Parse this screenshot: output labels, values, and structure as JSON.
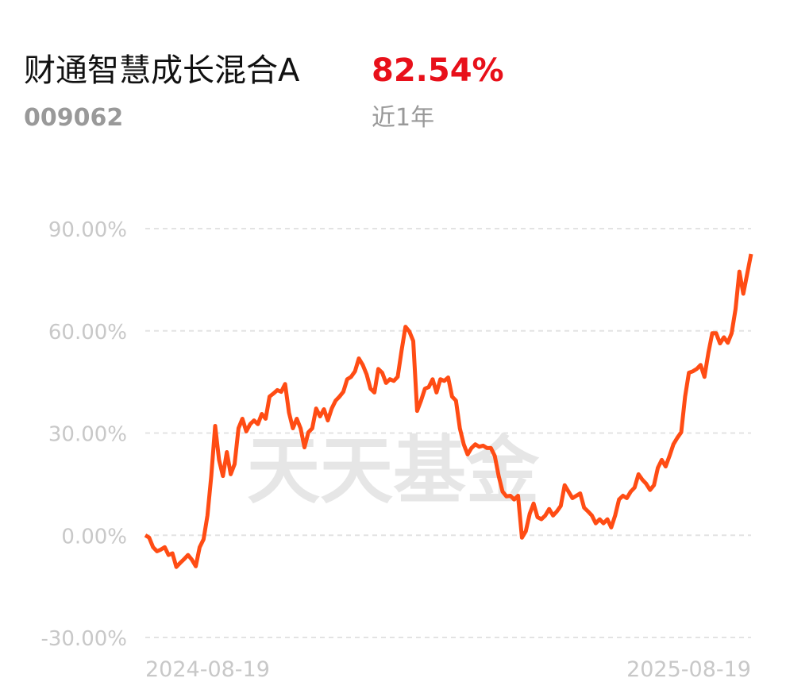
{
  "header": {
    "title": "财通智慧成长混合A",
    "return": "82.54%",
    "code": "009062",
    "period": "近1年"
  },
  "chart_data": {
    "type": "line",
    "watermark": "天天基金",
    "categories": [
      "2024-08-19",
      null,
      null,
      null,
      null,
      null,
      null,
      null,
      null,
      null,
      null,
      null,
      null,
      null,
      null,
      null,
      null,
      null,
      null,
      null,
      null,
      null,
      null,
      null,
      null,
      null,
      null,
      null,
      null,
      null,
      null,
      null,
      null,
      null,
      null,
      null,
      null,
      null,
      null,
      null,
      null,
      null,
      null,
      null,
      null,
      null,
      null,
      null,
      null,
      null,
      null,
      null,
      null,
      null,
      null,
      null,
      null,
      null,
      null,
      null,
      null,
      null,
      null,
      null,
      null,
      null,
      null,
      null,
      null,
      null,
      null,
      null,
      null,
      null,
      null,
      null,
      null,
      null,
      null,
      null,
      null,
      null,
      null,
      null,
      null,
      null,
      null,
      null,
      null,
      null,
      null,
      null,
      null,
      null,
      null,
      null,
      null,
      null,
      null,
      null,
      null,
      null,
      null,
      null,
      null,
      null,
      null,
      null,
      null,
      null,
      null,
      null,
      null,
      null,
      null,
      null,
      null,
      null,
      null,
      null,
      null,
      null,
      null,
      null,
      null,
      null,
      null,
      null,
      null,
      null,
      null,
      null,
      null,
      null,
      null,
      null,
      null,
      null,
      null,
      null,
      null,
      null,
      null,
      null,
      null,
      null,
      null,
      null,
      null,
      null,
      null,
      null,
      null,
      null,
      null,
      null,
      "2025-08-19"
    ],
    "series": [
      {
        "color": "#ff4c14",
        "values": [
          0,
          -0.7,
          -3.5,
          -4.7,
          -4.2,
          -3.5,
          -5.8,
          -5.3,
          -9.3,
          -8.1,
          -7,
          -5.8,
          -7.2,
          -9.1,
          -3.5,
          -1.2,
          5.8,
          17.4,
          32.1,
          22.1,
          17.4,
          24.4,
          17.9,
          20.9,
          31.4,
          34.2,
          30.5,
          32.6,
          33.7,
          32.6,
          35.6,
          34.2,
          40.7,
          41.6,
          42.6,
          42.1,
          44.4,
          36,
          31.4,
          34.2,
          31.4,
          25.8,
          30.2,
          31.4,
          37.2,
          34.9,
          37,
          33.7,
          37.2,
          39.5,
          40.7,
          42.1,
          45.8,
          46.5,
          48.1,
          51.9,
          50,
          47.2,
          43,
          41.9,
          48.8,
          47.7,
          44.7,
          45.8,
          45.3,
          46.5,
          54.2,
          61.2,
          59.8,
          57,
          36.5,
          39.5,
          43,
          43.5,
          45.8,
          41.9,
          45.8,
          45.3,
          46.3,
          40.7,
          39.5,
          31.4,
          26.7,
          23.7,
          25.6,
          26.7,
          26,
          26.3,
          25.6,
          25.6,
          23.3,
          17.4,
          12.8,
          11.4,
          11.6,
          10.5,
          11.6,
          -0.7,
          1.2,
          6.3,
          9.3,
          5.3,
          4.7,
          5.8,
          7.7,
          5.8,
          7,
          8.6,
          14.7,
          12.8,
          10.9,
          11.6,
          12.3,
          8.1,
          7,
          5.8,
          3.5,
          4.7,
          3.5,
          4.7,
          2.3,
          5.8,
          10.5,
          11.6,
          10.9,
          12.8,
          14,
          17.9,
          16.3,
          15.1,
          13.3,
          14.7,
          19.8,
          22.1,
          20.2,
          23.3,
          26.7,
          28.6,
          30.2,
          40.7,
          47.7,
          48.1,
          48.8,
          50,
          46.5,
          53.5,
          59.3,
          59.3,
          56.3,
          58.1,
          56.5,
          59.3,
          66.3,
          77.4,
          70.9,
          76.7,
          82.54
        ]
      }
    ],
    "ylim": [
      -30,
      90
    ],
    "yticks": [
      {
        "value": 90,
        "label": "90.00%"
      },
      {
        "value": 60,
        "label": "60.00%"
      },
      {
        "value": 30,
        "label": "30.00%"
      },
      {
        "value": 0,
        "label": "0.00%"
      },
      {
        "value": -30,
        "label": "-30.00%"
      }
    ],
    "grid": true
  }
}
